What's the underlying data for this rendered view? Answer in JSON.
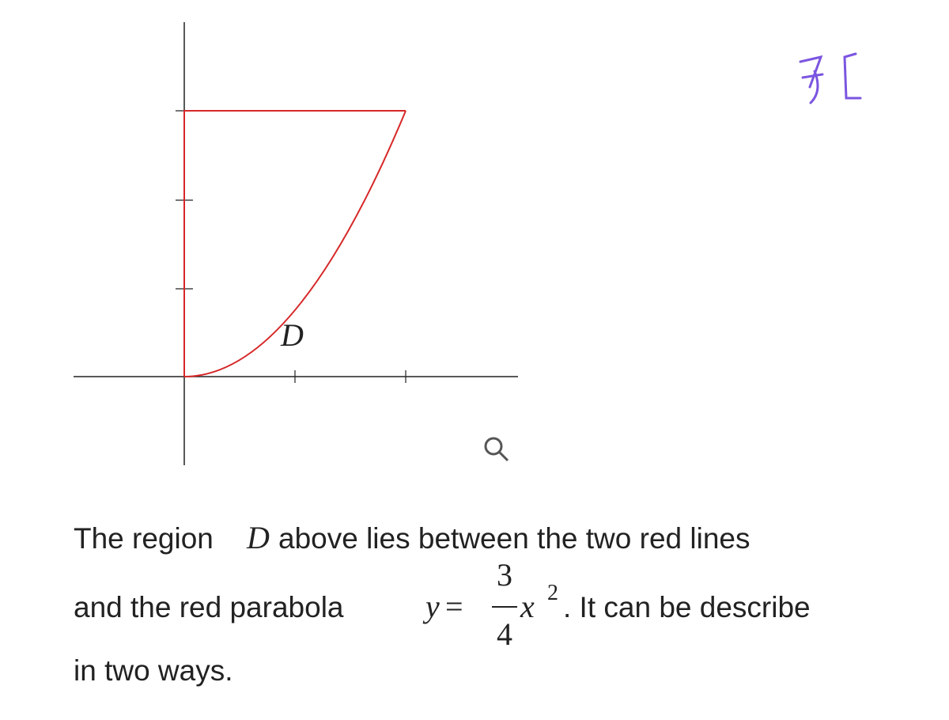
{
  "figure": {
    "region_label": "D"
  },
  "paragraph": {
    "line1": {
      "before": "The region",
      "symbol": "D",
      "after": "above lies between the two red lines"
    },
    "line2": {
      "before": "and the red parabola",
      "lhs": "y",
      "equals": "=",
      "numerator": "3",
      "denominator": "4",
      "variable": "x",
      "exponent": "2",
      "after": ". It can be describe"
    },
    "line3": "in two ways."
  }
}
